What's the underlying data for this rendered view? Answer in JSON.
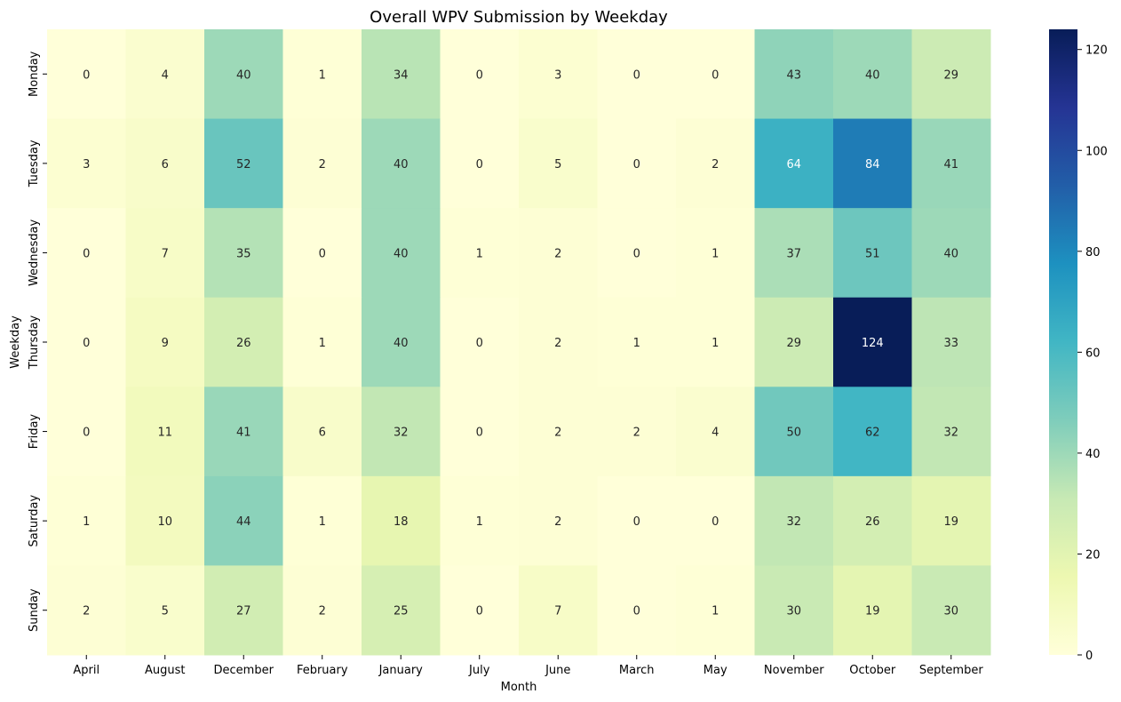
{
  "chart_data": {
    "type": "heatmap",
    "title": "Overall WPV Submission by Weekday",
    "xlabel": "Month",
    "ylabel": "Weekday",
    "x": [
      "April",
      "August",
      "December",
      "February",
      "January",
      "July",
      "June",
      "March",
      "May",
      "November",
      "October",
      "September"
    ],
    "y": [
      "Monday",
      "Tuesday",
      "Wednesday",
      "Thursday",
      "Friday",
      "Saturday",
      "Sunday"
    ],
    "values": [
      [
        0,
        4,
        40,
        1,
        34,
        0,
        3,
        0,
        0,
        43,
        40,
        29
      ],
      [
        3,
        6,
        52,
        2,
        40,
        0,
        5,
        0,
        2,
        64,
        84,
        41
      ],
      [
        0,
        7,
        35,
        0,
        40,
        1,
        2,
        0,
        1,
        37,
        51,
        40
      ],
      [
        0,
        9,
        26,
        1,
        40,
        0,
        2,
        1,
        1,
        29,
        124,
        33
      ],
      [
        0,
        11,
        41,
        6,
        32,
        0,
        2,
        2,
        4,
        50,
        62,
        32
      ],
      [
        1,
        10,
        44,
        1,
        18,
        1,
        2,
        0,
        0,
        32,
        26,
        19
      ],
      [
        2,
        5,
        27,
        2,
        25,
        0,
        7,
        0,
        1,
        30,
        19,
        30
      ]
    ],
    "colormap": "YlGnBu",
    "vmin": 0,
    "vmax": 124,
    "colorbar_ticks": [
      0,
      20,
      40,
      60,
      80,
      100,
      120
    ]
  }
}
